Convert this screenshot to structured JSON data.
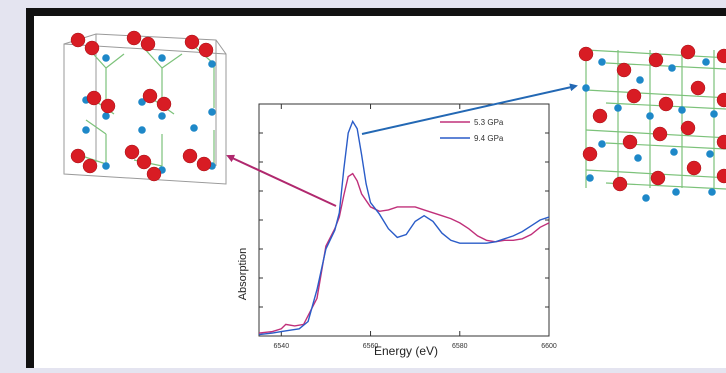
{
  "colors": {
    "background": "#e4e4f0",
    "frame": "#111111",
    "panel": "#ffffff",
    "atom_red": "#d81c24",
    "atom_blue": "#1e88c8",
    "bond_green": "#7cc27a",
    "arrow_magenta": "#b0286e",
    "arrow_blue": "#2368b4"
  },
  "structures": {
    "left": "crystal-structure-low-pressure",
    "right": "crystal-structure-high-pressure"
  },
  "chart_data": {
    "type": "line",
    "title": "",
    "xlabel": "Energy (eV)",
    "ylabel": "Absorption",
    "xlim": [
      6535,
      6600
    ],
    "ylim": [
      0,
      1.6
    ],
    "xticks": [
      6540,
      6560,
      6580,
      6600
    ],
    "xtick_labels": [
      "6540",
      "6560",
      "6580",
      "6600"
    ],
    "yticks_labeled": false,
    "legend_position": "top-right",
    "series": [
      {
        "name": "5.3 GPa",
        "color": "#c0307a",
        "x": [
          6535,
          6538,
          6540,
          6541,
          6543,
          6545,
          6548,
          6550,
          6552,
          6553,
          6554,
          6555,
          6556,
          6557,
          6558,
          6560,
          6562,
          6564,
          6566,
          6568,
          6570,
          6572,
          6574,
          6576,
          6578,
          6580,
          6582,
          6584,
          6586,
          6588,
          6590,
          6592,
          6594,
          6596,
          6598,
          6600
        ],
        "y": [
          0.02,
          0.03,
          0.05,
          0.08,
          0.07,
          0.08,
          0.26,
          0.62,
          0.74,
          0.82,
          0.97,
          1.1,
          1.12,
          1.07,
          0.98,
          0.89,
          0.86,
          0.87,
          0.89,
          0.89,
          0.89,
          0.87,
          0.85,
          0.83,
          0.81,
          0.78,
          0.74,
          0.69,
          0.66,
          0.65,
          0.66,
          0.66,
          0.67,
          0.7,
          0.75,
          0.78
        ]
      },
      {
        "name": "9.4 GPa",
        "color": "#2a5cc8",
        "x": [
          6535,
          6538,
          6540,
          6542,
          6544,
          6546,
          6548,
          6550,
          6552,
          6553,
          6554,
          6555,
          6556,
          6557,
          6558,
          6559,
          6560,
          6562,
          6564,
          6566,
          6568,
          6570,
          6572,
          6574,
          6576,
          6578,
          6580,
          6582,
          6584,
          6586,
          6588,
          6590,
          6592,
          6594,
          6596,
          6598,
          6600
        ],
        "y": [
          0.01,
          0.02,
          0.03,
          0.04,
          0.05,
          0.1,
          0.32,
          0.6,
          0.73,
          0.85,
          1.15,
          1.4,
          1.48,
          1.43,
          1.25,
          1.05,
          0.92,
          0.84,
          0.74,
          0.68,
          0.7,
          0.79,
          0.83,
          0.79,
          0.71,
          0.66,
          0.64,
          0.64,
          0.64,
          0.64,
          0.65,
          0.67,
          0.69,
          0.72,
          0.76,
          0.8,
          0.82
        ]
      }
    ]
  }
}
